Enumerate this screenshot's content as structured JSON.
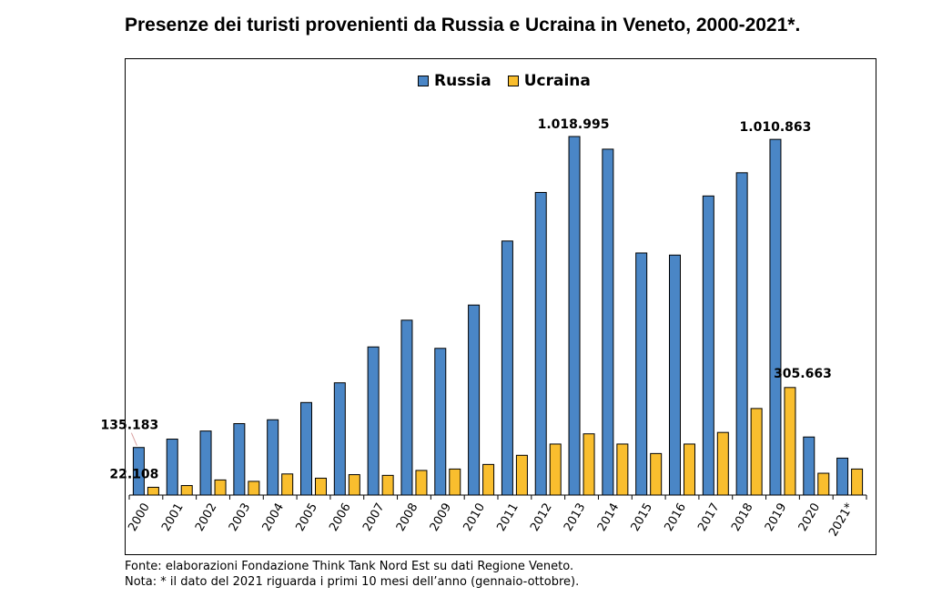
{
  "title": "Presenze dei turisti provenienti da Russia e Ucraina in Veneto, 2000-2021*.",
  "footnotes": {
    "source": "Fonte: elaborazioni Fondazione Think Tank Nord Est su dati Regione Veneto.",
    "note": "Nota: * il dato del 2021 riguarda i primi 10 mesi dell’anno (gennaio-ottobre)."
  },
  "colors": {
    "russia": "#4A86C6",
    "ucraina": "#F9BE2E"
  },
  "chart_data": {
    "type": "bar",
    "categories": [
      "2000",
      "2001",
      "2002",
      "2003",
      "2004",
      "2005",
      "2006",
      "2007",
      "2008",
      "2009",
      "2010",
      "2011",
      "2012",
      "2013",
      "2014",
      "2015",
      "2016",
      "2017",
      "2018",
      "2019",
      "2020",
      "2021*"
    ],
    "series": [
      {
        "name": "Russia",
        "values": [
          135183,
          159000,
          182000,
          203000,
          214000,
          263000,
          319000,
          421000,
          497000,
          417000,
          540000,
          722000,
          860000,
          1018995,
          983000,
          688000,
          682000,
          850000,
          916000,
          1010863,
          165000,
          105000
        ]
      },
      {
        "name": "Ucraina",
        "values": [
          22108,
          27000,
          43000,
          39000,
          60000,
          48000,
          58000,
          56000,
          70000,
          74000,
          87000,
          113000,
          145000,
          174000,
          145000,
          118000,
          145000,
          178000,
          246000,
          305663,
          62000,
          74000
        ]
      }
    ],
    "data_labels": [
      {
        "series": "Russia",
        "category": "2000",
        "text": "135.183"
      },
      {
        "series": "Ucraina",
        "category": "2000",
        "text": "22.108"
      },
      {
        "series": "Russia",
        "category": "2013",
        "text": "1.018.995"
      },
      {
        "series": "Russia",
        "category": "2019",
        "text": "1.010.863"
      },
      {
        "series": "Ucraina",
        "category": "2019",
        "text": "305.663"
      }
    ],
    "legend_position": "top-center",
    "grid": false,
    "ylim": [
      0,
      1050000
    ]
  }
}
